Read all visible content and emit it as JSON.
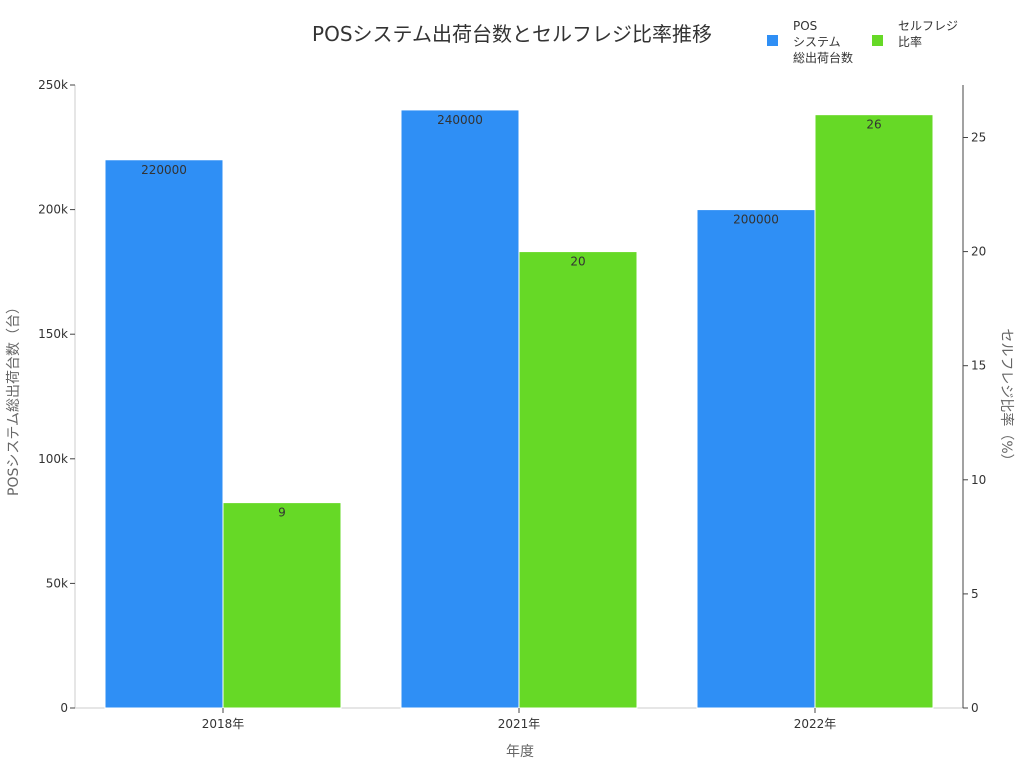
{
  "chart_data": {
    "type": "bar",
    "title": "POSシステム出荷台数とセルフレジ比率推移",
    "xlabel": "年度",
    "categories": [
      "2018年",
      "2021年",
      "2022年"
    ],
    "series": [
      {
        "name": "POSシステム総出荷台数",
        "legend_lines": [
          "POS",
          "システム",
          "総出荷台数"
        ],
        "axis": "left",
        "color": "#2f8ff5",
        "values": [
          220000,
          240000,
          200000
        ]
      },
      {
        "name": "セルフレジ比率",
        "legend_lines": [
          "セルフレジ",
          "比率"
        ],
        "axis": "right",
        "color": "#66d926",
        "values": [
          9,
          20,
          26
        ]
      }
    ],
    "y_left": {
      "label": "POSシステム総出荷台数（台）",
      "lim": [
        0,
        250000
      ],
      "ticks": [
        0,
        50000,
        100000,
        150000,
        200000,
        250000
      ],
      "tick_labels": [
        "0",
        "50k",
        "100k",
        "150k",
        "200k",
        "250k"
      ]
    },
    "y_right": {
      "label": "セルフレジ比率（%）",
      "lim": [
        0,
        27.3
      ],
      "ticks": [
        0,
        5,
        10,
        15,
        20,
        25
      ],
      "tick_labels": [
        "0",
        "5",
        "10",
        "15",
        "20",
        "25"
      ]
    },
    "grid": false,
    "legend_position": "top-right"
  }
}
